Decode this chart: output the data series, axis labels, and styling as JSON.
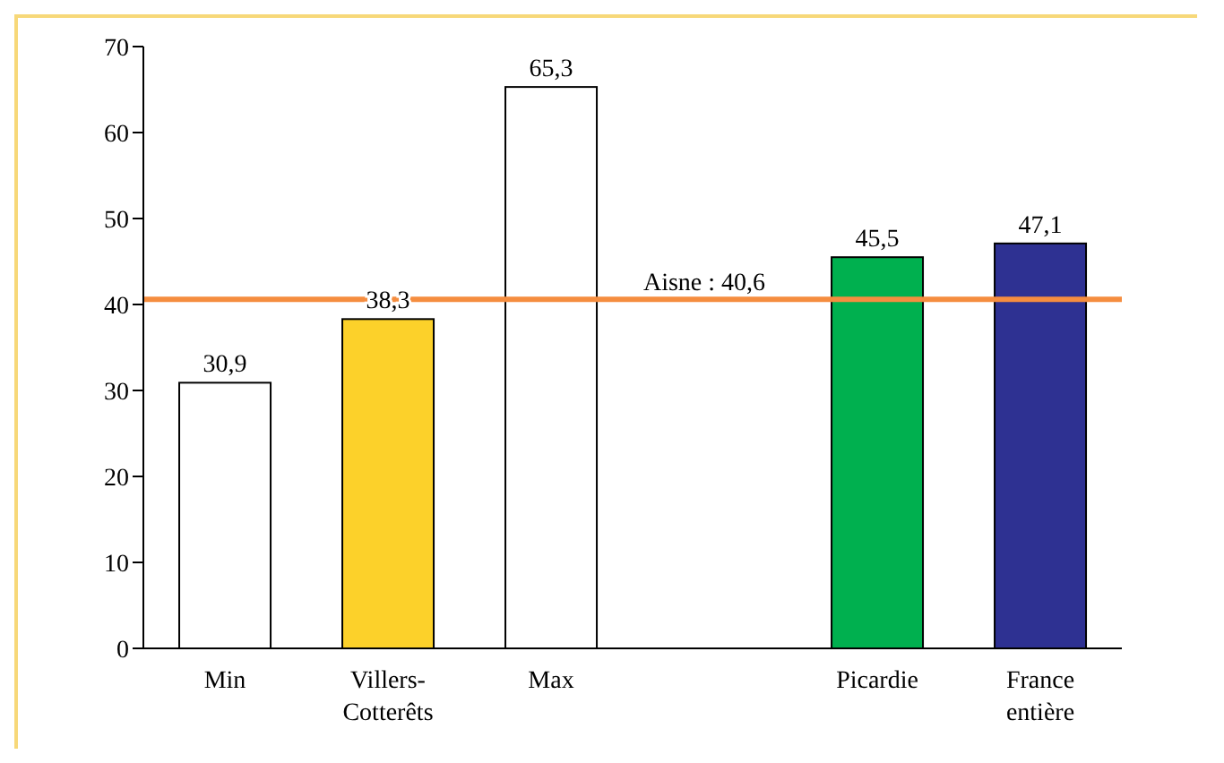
{
  "chart_data": {
    "type": "bar",
    "categories": [
      "Min",
      "Villers-Cotterêts",
      "Max",
      null,
      "Picardie",
      "France entière"
    ],
    "values": [
      30.9,
      38.3,
      65.3,
      null,
      45.5,
      47.1
    ],
    "colors": [
      "#ffffff",
      "#fcd12a",
      "#ffffff",
      null,
      "#00b04f",
      "#2e3192"
    ],
    "value_labels": [
      "30,9",
      "38,3",
      "65,3",
      null,
      "45,5",
      "47,1"
    ],
    "ylim": [
      0,
      70
    ],
    "yticks": [
      0,
      10,
      20,
      30,
      40,
      50,
      60,
      70
    ],
    "grid": false,
    "legend": false,
    "ref_lines": [
      {
        "axis": "y",
        "value": 40.6,
        "label": "Aisne : 40,6",
        "color": "#f58d3f"
      }
    ]
  }
}
